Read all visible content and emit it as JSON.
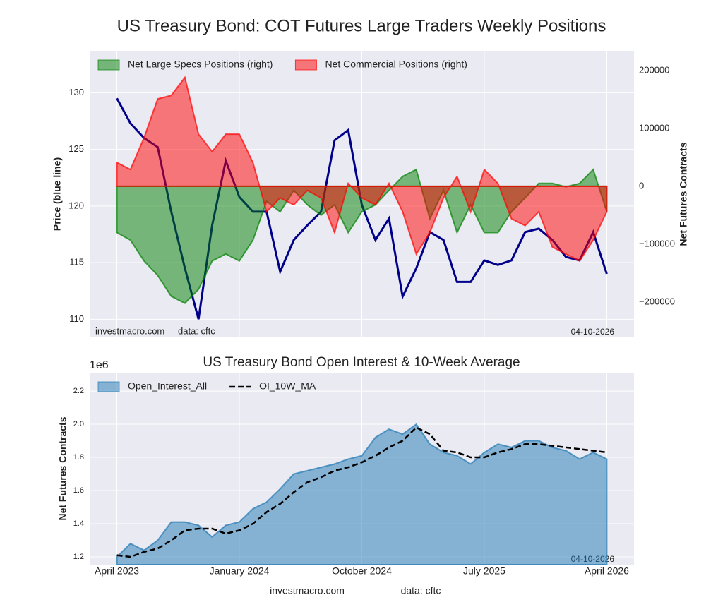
{
  "chart_data": [
    {
      "type": "combo",
      "title": "US Treasury Bond: COT Futures Large Traders Weekly Positions",
      "ylabel": "Price (blue line)",
      "y2label": "Net Futures Contracts",
      "watermark": "investmacro.com",
      "source": "data: cftc",
      "date": "04-10-2026",
      "x": [
        "2023-04",
        "2023-05",
        "2023-06",
        "2023-07",
        "2023-08",
        "2023-09",
        "2023-10",
        "2023-11",
        "2023-12",
        "2024-01",
        "2024-02",
        "2024-03",
        "2024-04",
        "2024-05",
        "2024-06",
        "2024-07",
        "2024-08",
        "2024-09",
        "2024-10",
        "2024-11",
        "2024-12",
        "2025-01",
        "2025-02",
        "2025-03",
        "2025-04",
        "2025-05",
        "2025-06",
        "2025-07",
        "2025-08",
        "2025-09",
        "2025-10",
        "2025-11",
        "2025-12",
        "2026-01",
        "2026-02",
        "2026-03",
        "2026-04"
      ],
      "xlim": [
        "2023-02",
        "2026-06"
      ],
      "xticks": [
        "2023-04",
        "2024-01",
        "2024-10",
        "2025-07",
        "2026-04"
      ],
      "ylim": [
        108.4,
        133.7
      ],
      "yticks": [
        110,
        115,
        120,
        125,
        130
      ],
      "y2lim": [
        -261000,
        234000
      ],
      "y2ticks": [
        {
          "value": -200000,
          "label": "−200000"
        },
        {
          "value": -100000,
          "label": "−100000"
        },
        0,
        100000,
        200000
      ],
      "grid": true,
      "legend": "upper left",
      "series": [
        {
          "kind": "line",
          "color": "#00008b",
          "axis": "y",
          "values": [
            129.5,
            127.3,
            126,
            125.2,
            119.5,
            114.5,
            110,
            118.3,
            124,
            120.8,
            119.5,
            119.5,
            114.2,
            117,
            118.3,
            119.5,
            125.8,
            126.7,
            120.1,
            117,
            118.9,
            112,
            114.5,
            117.7,
            117,
            113.3,
            113.3,
            115.2,
            114.8,
            115.2,
            117.7,
            118,
            117,
            115.5,
            115.2,
            117.7,
            114
          ]
        },
        {
          "kind": "area",
          "name": "Net Large Specs Positions (right)",
          "color": "#008000",
          "axis": "y2",
          "values": [
            -80000,
            -93000,
            -129000,
            -154000,
            -190000,
            -202000,
            -178000,
            -129000,
            -117000,
            -129000,
            -93000,
            -26000,
            -44000,
            -7000,
            -32000,
            -50000,
            -32000,
            -80000,
            -44000,
            -32000,
            -7000,
            17000,
            29000,
            -56000,
            -7000,
            -80000,
            -32000,
            -80000,
            -80000,
            -44000,
            -20000,
            5000,
            5000,
            -1000,
            5000,
            29000,
            -44000
          ]
        },
        {
          "kind": "area",
          "name": "Net Commercial Positions (right)",
          "color": "#ff0000",
          "axis": "y2",
          "values": [
            41000,
            29000,
            84000,
            151000,
            157000,
            188000,
            90000,
            60000,
            90000,
            90000,
            41000,
            -44000,
            -20000,
            -32000,
            -7000,
            -20000,
            -80000,
            5000,
            -20000,
            -32000,
            5000,
            -44000,
            -117000,
            -80000,
            -20000,
            17000,
            -44000,
            29000,
            5000,
            -56000,
            -68000,
            -44000,
            -105000,
            -117000,
            -129000,
            -93000,
            -44000
          ]
        }
      ]
    },
    {
      "type": "combo",
      "title": "US Treasury Bond Open Interest & 10-Week Average",
      "ylabel": "Net Futures Contracts",
      "offset_text": "1e6",
      "date": "04-10-2026",
      "x": [
        "2023-04",
        "2023-05",
        "2023-06",
        "2023-07",
        "2023-08",
        "2023-09",
        "2023-10",
        "2023-11",
        "2023-12",
        "2024-01",
        "2024-02",
        "2024-03",
        "2024-04",
        "2024-05",
        "2024-06",
        "2024-07",
        "2024-08",
        "2024-09",
        "2024-10",
        "2024-11",
        "2024-12",
        "2025-01",
        "2025-02",
        "2025-03",
        "2025-04",
        "2025-05",
        "2025-06",
        "2025-07",
        "2025-08",
        "2025-09",
        "2025-10",
        "2025-11",
        "2025-12",
        "2026-01",
        "2026-02",
        "2026-03",
        "2026-04"
      ],
      "xlim": [
        "2023-02",
        "2026-06"
      ],
      "xticks": [
        {
          "value": "2023-04",
          "label": "April 2023"
        },
        {
          "value": "2024-01",
          "label": "January 2024"
        },
        {
          "value": "2024-10",
          "label": "October 2024"
        },
        {
          "value": "2025-07",
          "label": "July 2025"
        },
        {
          "value": "2026-04",
          "label": "April 2026"
        }
      ],
      "ylim": [
        1.153,
        2.311
      ],
      "yticks": [
        1.2,
        1.4,
        1.6,
        1.8,
        {
          "value": 2,
          "label": "2.0"
        },
        2.2
      ],
      "grid": true,
      "legend": "upper left",
      "series": [
        {
          "kind": "area",
          "name": "Open_Interest_All",
          "color": "#1f77b4",
          "axis": "y",
          "values": [
            1.2,
            1.28,
            1.24,
            1.3,
            1.41,
            1.41,
            1.39,
            1.32,
            1.39,
            1.41,
            1.49,
            1.53,
            1.61,
            1.7,
            1.72,
            1.74,
            1.76,
            1.79,
            1.81,
            1.92,
            1.97,
            1.94,
            2.0,
            1.88,
            1.83,
            1.81,
            1.76,
            1.83,
            1.88,
            1.86,
            1.9,
            1.9,
            1.86,
            1.84,
            1.79,
            1.83,
            1.79
          ]
        },
        {
          "kind": "line",
          "name": "OI_10W_MA",
          "color": "#000000",
          "linestyle": "dashed",
          "axis": "y",
          "values": [
            1.21,
            1.2,
            1.23,
            1.25,
            1.3,
            1.36,
            1.37,
            1.37,
            1.34,
            1.36,
            1.4,
            1.47,
            1.52,
            1.59,
            1.65,
            1.68,
            1.72,
            1.74,
            1.77,
            1.81,
            1.86,
            1.9,
            1.98,
            1.94,
            1.84,
            1.83,
            1.8,
            1.8,
            1.83,
            1.85,
            1.88,
            1.88,
            1.87,
            1.86,
            1.85,
            1.84,
            1.83
          ]
        }
      ]
    }
  ],
  "footer": {
    "site": "investmacro.com",
    "source": "data: cftc"
  }
}
